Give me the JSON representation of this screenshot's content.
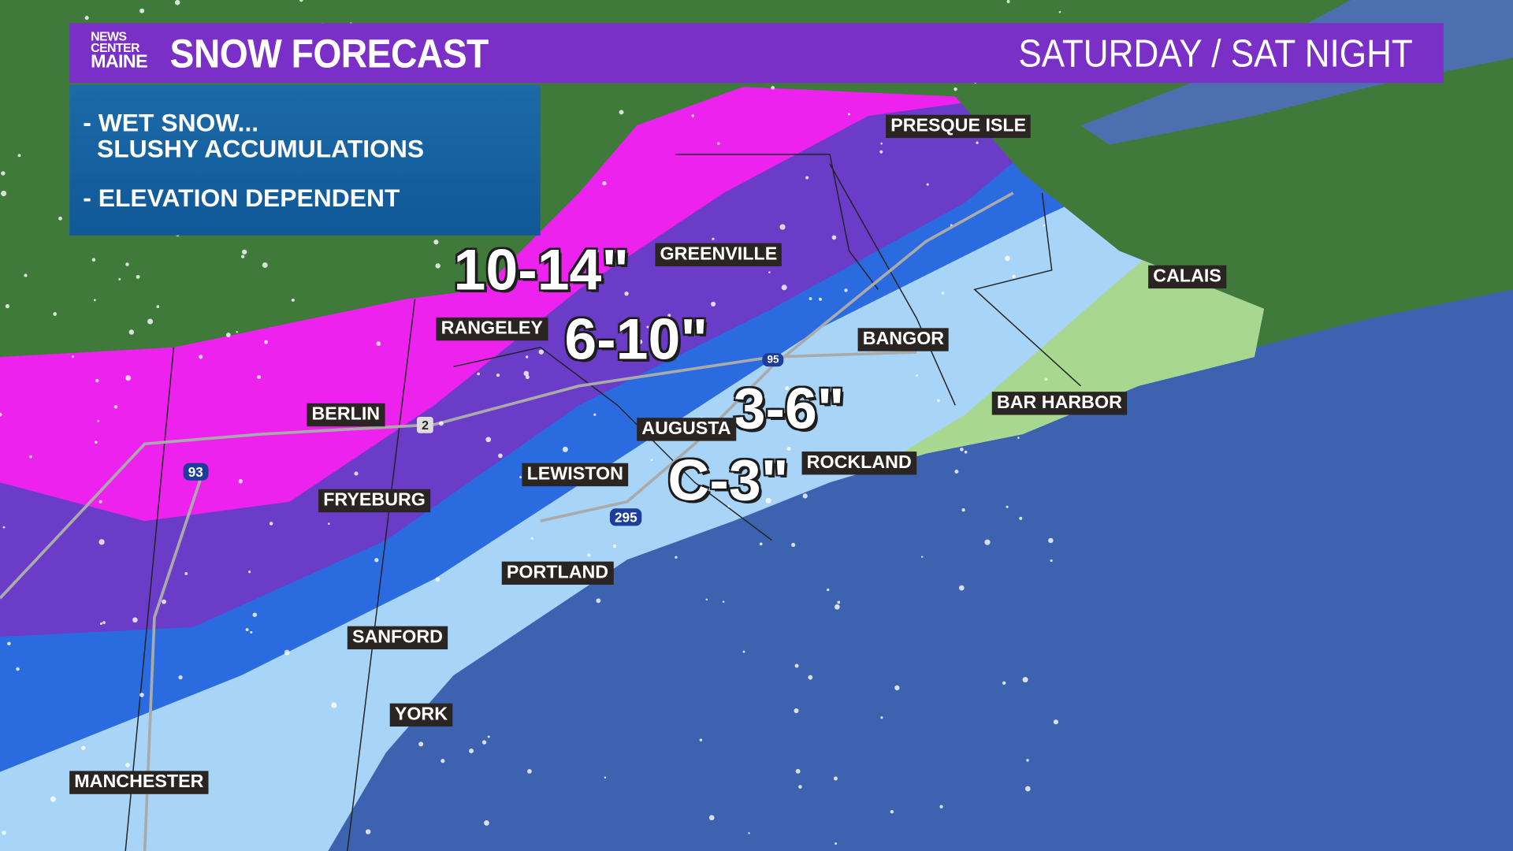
{
  "header": {
    "logo": {
      "line1": "NEWS",
      "line2": "CENTER",
      "line3": "MAINE"
    },
    "title": "SNOW FORECAST",
    "period": "SATURDAY / SAT NIGHT"
  },
  "notes": [
    "- WET SNOW...\n  SLUSHY ACCUMULATIONS",
    "- ELEVATION DEPENDENT"
  ],
  "amounts": [
    "10-14\"",
    "6-10\"",
    "3-6\"",
    "C-3\""
  ],
  "colors": {
    "10-14": "#ee22ee",
    "6-10": "#6a3cc8",
    "3-6": "#2a6be0",
    "C-3": "#a8d4f8",
    "trace": "#a8d890",
    "land": "#3f7a3a",
    "ocean": "#3d63b0",
    "header": "#7a2fc6"
  },
  "cities": [
    "PRESQUE ISLE",
    "GREENVILLE",
    "CALAIS",
    "RANGELEY",
    "BANGOR",
    "BERLIN",
    "BAR HARBOR",
    "AUGUSTA",
    "ROCKLAND",
    "LEWISTON",
    "FRYEBURG",
    "PORTLAND",
    "SANFORD",
    "YORK",
    "MANCHESTER"
  ],
  "highways": [
    "2",
    "93",
    "295",
    "95"
  ]
}
